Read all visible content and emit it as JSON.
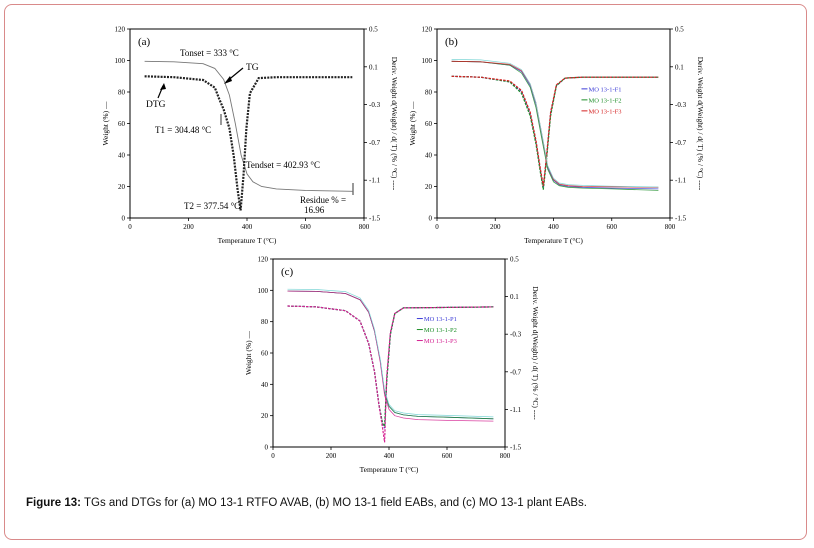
{
  "caption": {
    "label": "Figure 13:",
    "text": "TGs and DTGs for (a) MO 13-1 RTFO AVAB, (b) MO 13-1 field EABs, and (c) MO 13-1 plant EABs."
  },
  "chart_data": [
    {
      "panel": "(a)",
      "type": "line",
      "xlabel": "Temperature T (°C)",
      "ylabel": "Weight (%) —",
      "y2label": "Deriv. Weight d(Weight) / d( T) (% / °C) ----",
      "xlim": [
        0,
        800
      ],
      "ylim": [
        0,
        120
      ],
      "y2lim": [
        -1.5,
        0.5
      ],
      "xticks": [
        0,
        200,
        400,
        600,
        800
      ],
      "yticks": [
        0,
        20,
        40,
        60,
        80,
        100,
        120
      ],
      "y2ticks": [
        "0.5",
        "0.1",
        "-0.3",
        "-0.7",
        "-1.1",
        "-1.5"
      ],
      "series": [
        {
          "role": "TG",
          "color": "#777777",
          "x": [
            50,
            150,
            250,
            290,
            320,
            340,
            360,
            380,
            400,
            420,
            450,
            500,
            600,
            760
          ],
          "y": [
            99.5,
            99.2,
            98,
            95,
            88,
            78,
            60,
            40,
            28,
            23,
            20,
            18.5,
            17.5,
            16.96
          ]
        },
        {
          "role": "DTG",
          "color": "#222222",
          "x": [
            50,
            150,
            250,
            290,
            305,
            320,
            340,
            355,
            368,
            378,
            388,
            398,
            410,
            440,
            500,
            760
          ],
          "y": [
            0.0,
            -0.01,
            -0.04,
            -0.12,
            -0.24,
            -0.35,
            -0.55,
            -0.85,
            -1.2,
            -1.42,
            -1.05,
            -0.55,
            -0.18,
            -0.02,
            -0.01,
            -0.01
          ]
        }
      ],
      "annotations": [
        {
          "text": "Tonset = 333 °C"
        },
        {
          "text": "TG"
        },
        {
          "text": "DTG"
        },
        {
          "text": "T1 = 304.48 °C"
        },
        {
          "text": "Tendset = 402.93 °C"
        },
        {
          "text": "T2 = 377.54 °C"
        },
        {
          "text": "Residue % = 16.96"
        }
      ]
    },
    {
      "panel": "(b)",
      "type": "line",
      "xlabel": "Temperature T (°C)",
      "ylabel": "Weight (%) —",
      "y2label": "Deriv. Weight d(Weight) / d( T) (% / °C) ----",
      "xlim": [
        0,
        800
      ],
      "ylim": [
        0,
        120
      ],
      "y2lim": [
        -1.5,
        0.5
      ],
      "xticks": [
        0,
        200,
        400,
        600,
        800
      ],
      "yticks": [
        0,
        20,
        40,
        60,
        80,
        100,
        120
      ],
      "y2ticks": [
        "0.5",
        "0.1",
        "-0.3",
        "-0.7",
        "-1.1",
        "-1.5"
      ],
      "legend": [
        "MO 13-1-F1",
        "MO 13-1-F2",
        "MO 13-1-F3"
      ],
      "series": [
        {
          "name": "MO 13-1-F1",
          "color": "#3b3bd6",
          "tg_x": [
            50,
            150,
            250,
            290,
            320,
            340,
            360,
            380,
            400,
            420,
            450,
            500,
            600,
            760
          ],
          "tg_y": [
            99.5,
            99.2,
            97,
            93,
            84,
            72,
            52,
            32,
            24,
            21,
            20,
            19.5,
            19,
            18.5
          ],
          "dtg_x": [
            50,
            150,
            250,
            290,
            320,
            340,
            355,
            365,
            375,
            390,
            410,
            440,
            500,
            760
          ],
          "dtg_y": [
            0,
            -0.01,
            -0.06,
            -0.16,
            -0.4,
            -0.7,
            -1.0,
            -1.18,
            -0.9,
            -0.4,
            -0.1,
            -0.02,
            -0.01,
            -0.01
          ]
        },
        {
          "name": "MO 13-1-F2",
          "color": "#1e8f2a",
          "tg_x": [
            50,
            150,
            250,
            290,
            320,
            340,
            360,
            380,
            400,
            420,
            450,
            500,
            600,
            760
          ],
          "tg_y": [
            99.5,
            99.2,
            97,
            92,
            83,
            70,
            50,
            31,
            23,
            20.5,
            19.5,
            19,
            18.5,
            17.5
          ],
          "dtg_x": [
            50,
            150,
            250,
            290,
            320,
            340,
            355,
            365,
            375,
            390,
            410,
            440,
            500,
            760
          ],
          "dtg_y": [
            0,
            -0.01,
            -0.06,
            -0.18,
            -0.42,
            -0.72,
            -1.02,
            -1.2,
            -0.92,
            -0.42,
            -0.1,
            -0.02,
            -0.01,
            -0.01
          ]
        },
        {
          "name": "MO 13-1-F3",
          "color": "#d42020",
          "tg_x": [
            50,
            150,
            250,
            290,
            320,
            340,
            360,
            380,
            400,
            420,
            450,
            500,
            600,
            760
          ],
          "tg_y": [
            99.5,
            99.2,
            97.5,
            93.5,
            85,
            73,
            53,
            33,
            24.5,
            21.5,
            20.5,
            20,
            19.8,
            19.5
          ],
          "dtg_x": [
            50,
            150,
            250,
            290,
            320,
            340,
            355,
            365,
            375,
            390,
            410,
            440,
            500,
            760
          ],
          "dtg_y": [
            0,
            -0.01,
            -0.05,
            -0.15,
            -0.38,
            -0.68,
            -0.98,
            -1.16,
            -0.88,
            -0.38,
            -0.09,
            -0.02,
            -0.01,
            -0.01
          ]
        }
      ]
    },
    {
      "panel": "(c)",
      "type": "line",
      "xlabel": "Temperature T (°C)",
      "ylabel": "Weight (%) —",
      "y2label": "Deriv. Weight d(Weight) / d( T) (% / °C) ----",
      "xlim": [
        0,
        800
      ],
      "ylim": [
        0,
        120
      ],
      "y2lim": [
        -1.5,
        0.5
      ],
      "xticks": [
        0,
        200,
        400,
        600,
        800
      ],
      "yticks": [
        0,
        20,
        40,
        60,
        80,
        100,
        120
      ],
      "y2ticks": [
        "0.5",
        "0.1",
        "-0.3",
        "-0.7",
        "-1.1",
        "-1.5"
      ],
      "legend": [
        "MO 13-1-P1",
        "MO 13-1-P2",
        "MO 13-1-P3"
      ],
      "series": [
        {
          "name": "MO 13-1-P1",
          "color": "#3b3bd6",
          "tg_x": [
            50,
            150,
            250,
            300,
            330,
            350,
            370,
            385,
            400,
            420,
            450,
            500,
            600,
            760
          ],
          "tg_y": [
            99.5,
            99.3,
            98,
            94,
            86,
            74,
            55,
            35,
            26,
            22,
            20.5,
            19.5,
            19,
            18
          ],
          "dtg_x": [
            50,
            150,
            250,
            300,
            330,
            350,
            365,
            378,
            385,
            392,
            405,
            420,
            450,
            760
          ],
          "dtg_y": [
            0,
            -0.01,
            -0.05,
            -0.16,
            -0.4,
            -0.7,
            -1.05,
            -1.25,
            -1.3,
            -0.8,
            -0.3,
            -0.08,
            -0.02,
            -0.01
          ]
        },
        {
          "name": "MO 13-1-P2",
          "color": "#1e8f2a",
          "tg_x": [
            50,
            150,
            250,
            300,
            330,
            350,
            370,
            385,
            400,
            420,
            450,
            500,
            600,
            760
          ],
          "tg_y": [
            99.5,
            99.3,
            98,
            94,
            86,
            74,
            55,
            35,
            26,
            22,
            20.5,
            19.5,
            19,
            18
          ],
          "dtg_x": [
            50,
            150,
            250,
            300,
            330,
            350,
            365,
            378,
            385,
            392,
            405,
            420,
            450,
            760
          ],
          "dtg_y": [
            0,
            -0.01,
            -0.05,
            -0.16,
            -0.4,
            -0.7,
            -1.05,
            -1.25,
            -1.28,
            -0.8,
            -0.3,
            -0.08,
            -0.02,
            -0.01
          ]
        },
        {
          "name": "MO 13-1-P3",
          "color": "#d42091",
          "tg_x": [
            50,
            150,
            250,
            300,
            330,
            350,
            370,
            385,
            400,
            420,
            450,
            500,
            600,
            760
          ],
          "tg_y": [
            99.5,
            99.3,
            98,
            94,
            86,
            74,
            54,
            33,
            24,
            20,
            18.5,
            17.5,
            17,
            16.5
          ],
          "dtg_x": [
            50,
            150,
            250,
            300,
            330,
            350,
            365,
            378,
            385,
            392,
            405,
            420,
            450,
            760
          ],
          "dtg_y": [
            0,
            -0.01,
            -0.05,
            -0.16,
            -0.4,
            -0.7,
            -1.05,
            -1.3,
            -1.45,
            -0.75,
            -0.28,
            -0.08,
            -0.02,
            -0.01
          ]
        }
      ]
    }
  ]
}
